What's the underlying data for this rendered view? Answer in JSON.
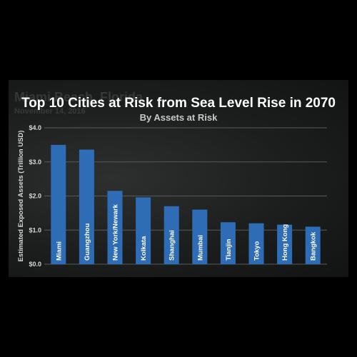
{
  "background": {
    "faded_title": "Miami Beach, Florida",
    "faded_date": "November 14, 2016"
  },
  "colors": {
    "bar": "#2e6db5",
    "bar_label": "#ffffff",
    "axis_text": "#d8d8d8",
    "gridline": "#555a5a"
  },
  "chart_data": {
    "type": "bar",
    "title": "Top 10 Cities at Risk from Sea Level Rise in 2070",
    "subtitle": "By Assets at Risk",
    "xlabel": "",
    "ylabel": "Estimated Exposed Assets (Trillion USD)",
    "ylim": [
      0,
      4.0
    ],
    "yticks": [
      {
        "value": 0,
        "label": "$0.0"
      },
      {
        "value": 1,
        "label": "$1.0"
      },
      {
        "value": 2,
        "label": "$2.0"
      },
      {
        "value": 3,
        "label": "$3.0"
      },
      {
        "value": 4,
        "label": "$4.0"
      }
    ],
    "grid": true,
    "categories": [
      "Miami",
      "Guangzhou",
      "New York/Newark",
      "Kolkata",
      "Shanghai",
      "Mumbai",
      "Tianjin",
      "Tokyo",
      "Hong Kong",
      "Bangkok"
    ],
    "values": [
      3.5,
      3.36,
      2.15,
      1.96,
      1.7,
      1.6,
      1.23,
      1.2,
      1.16,
      1.1
    ]
  }
}
